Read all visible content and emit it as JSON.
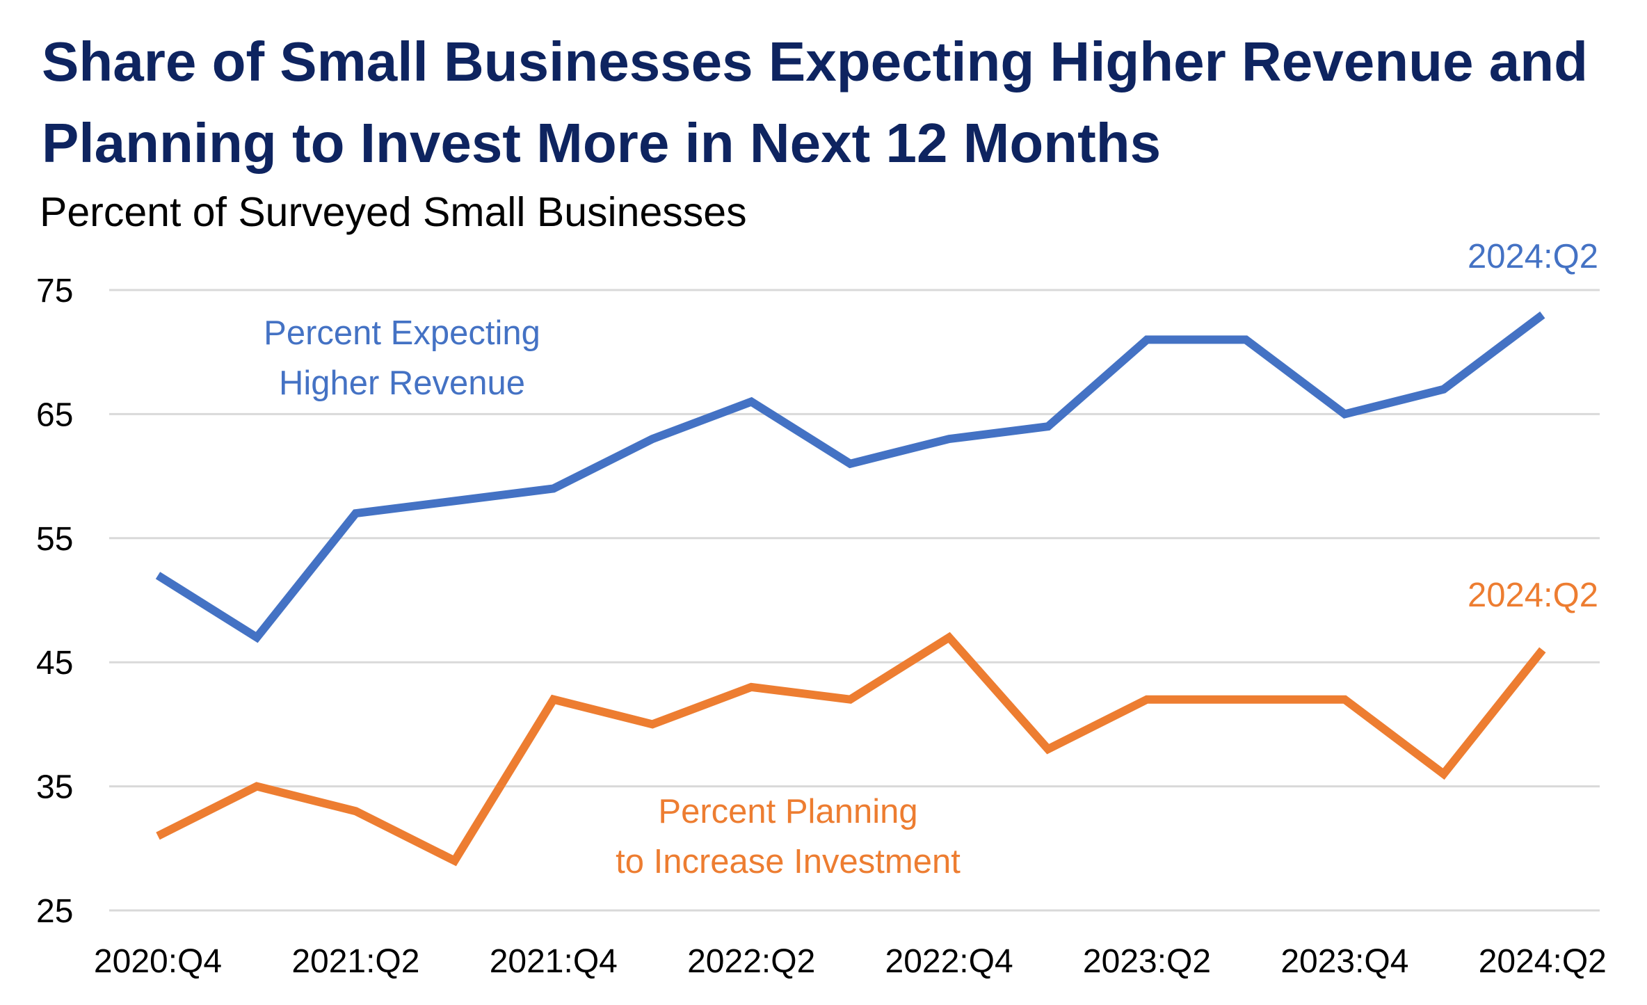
{
  "title_line1": "Share of Small Businesses Expecting Higher Revenue and",
  "title_line2": "Planning to Invest More in Next 12 Months",
  "subtitle": "Percent of Surveyed Small Businesses",
  "chart_data": {
    "type": "line",
    "title": "Share of Small Businesses Expecting Higher Revenue and Planning to Invest More in Next 12 Months",
    "ylabel": "Percent of Surveyed Small Businesses",
    "xlabel": "",
    "ylim": [
      25,
      75
    ],
    "yticks": [
      75,
      65,
      55,
      45,
      35,
      25
    ],
    "grid": true,
    "categories": [
      "2020:Q4",
      "2021:Q1",
      "2021:Q2",
      "2021:Q3",
      "2021:Q4",
      "2022:Q1",
      "2022:Q2",
      "2022:Q3",
      "2022:Q4",
      "2023:Q1",
      "2023:Q2",
      "2023:Q3",
      "2023:Q4",
      "2024:Q1",
      "2024:Q2"
    ],
    "xtick_labels": [
      "2020:Q4",
      "2021:Q2",
      "2021:Q4",
      "2022:Q2",
      "2022:Q4",
      "2023:Q2",
      "2023:Q4",
      "2024:Q2"
    ],
    "series": [
      {
        "name": "Percent Expecting Higher Revenue",
        "label_lines": [
          "Percent Expecting",
          "Higher Revenue"
        ],
        "end_label": "2024:Q2",
        "color": "#4472c4",
        "values": [
          52,
          47,
          57,
          58,
          59,
          63,
          66,
          61,
          63,
          64,
          71,
          71,
          65,
          67,
          73
        ]
      },
      {
        "name": "Percent Planning to Increase Investment",
        "label_lines": [
          "Percent Planning",
          "to Increase Investment"
        ],
        "end_label": "2024:Q2",
        "color": "#ed7d31",
        "values": [
          31,
          35,
          33,
          29,
          42,
          40,
          43,
          42,
          47,
          38,
          42,
          42,
          42,
          36,
          46
        ]
      }
    ],
    "gridline_color": "#d9d9d9"
  }
}
